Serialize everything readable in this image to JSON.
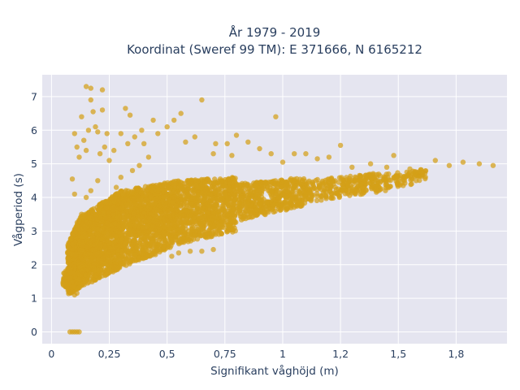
{
  "chart_data": {
    "type": "scatter",
    "title_lines": [
      "År 1979 - 2019",
      "Koordinat (Sweref 99 TM): E 371666, N 6165212"
    ],
    "xlabel": "Signifikant våghöjd (m)",
    "ylabel": "Vågperiod (s)",
    "xlim": [
      -0.04,
      1.97
    ],
    "ylim": [
      -0.35,
      7.65
    ],
    "x_ticks": [
      0,
      0.25,
      0.5,
      0.75,
      1,
      1.25,
      1.5,
      1.75
    ],
    "x_tick_labels": [
      "0",
      "0,25",
      "0,5",
      "0,75",
      "1",
      "1,2",
      "1,5",
      "1,8"
    ],
    "y_ticks": [
      0,
      1,
      2,
      3,
      4,
      5,
      6,
      7
    ],
    "y_tick_labels": [
      "0",
      "1",
      "2",
      "3",
      "4",
      "5",
      "6",
      "7"
    ],
    "marker_color": "#D4A017",
    "background_color": "#E5E5F0",
    "grid": true,
    "series": [
      {
        "points": [
          [
            0.08,
            0.0
          ],
          [
            0.09,
            0.0
          ],
          [
            0.1,
            0.0
          ],
          [
            0.11,
            0.0
          ],
          [
            0.12,
            0.0
          ],
          [
            0.05,
            1.45
          ],
          [
            0.06,
            1.5
          ],
          [
            0.07,
            1.3
          ],
          [
            0.08,
            1.6
          ],
          [
            0.09,
            1.2
          ],
          [
            0.1,
            1.1
          ],
          [
            0.11,
            1.15
          ],
          [
            0.08,
            2.0
          ],
          [
            0.09,
            2.6
          ],
          [
            0.1,
            3.0
          ],
          [
            0.12,
            3.3
          ],
          [
            0.13,
            3.5
          ],
          [
            0.1,
            4.1
          ],
          [
            0.09,
            4.55
          ],
          [
            0.1,
            5.9
          ],
          [
            0.11,
            5.5
          ],
          [
            0.12,
            5.2
          ],
          [
            0.14,
            5.7
          ],
          [
            0.15,
            5.4
          ],
          [
            0.13,
            6.4
          ],
          [
            0.16,
            6.0
          ],
          [
            0.19,
            6.1
          ],
          [
            0.17,
            6.9
          ],
          [
            0.18,
            6.55
          ],
          [
            0.2,
            5.95
          ],
          [
            0.22,
            6.6
          ],
          [
            0.21,
            5.3
          ],
          [
            0.23,
            5.5
          ],
          [
            0.25,
            5.1
          ],
          [
            0.24,
            5.9
          ],
          [
            0.27,
            5.4
          ],
          [
            0.3,
            5.9
          ],
          [
            0.33,
            5.6
          ],
          [
            0.36,
            5.8
          ],
          [
            0.32,
            6.65
          ],
          [
            0.34,
            6.45
          ],
          [
            0.39,
            6.0
          ],
          [
            0.4,
            5.6
          ],
          [
            0.38,
            4.95
          ],
          [
            0.42,
            5.2
          ],
          [
            0.44,
            6.3
          ],
          [
            0.46,
            5.9
          ],
          [
            0.5,
            6.1
          ],
          [
            0.53,
            6.3
          ],
          [
            0.56,
            6.5
          ],
          [
            0.58,
            5.65
          ],
          [
            0.62,
            5.8
          ],
          [
            0.65,
            6.9
          ],
          [
            0.7,
            5.3
          ],
          [
            0.71,
            5.6
          ],
          [
            0.76,
            5.6
          ],
          [
            0.78,
            5.25
          ],
          [
            0.8,
            5.85
          ],
          [
            0.85,
            5.65
          ],
          [
            0.9,
            5.45
          ],
          [
            0.95,
            5.3
          ],
          [
            0.97,
            6.4
          ],
          [
            1.0,
            5.05
          ],
          [
            1.05,
            5.3
          ],
          [
            1.1,
            5.3
          ],
          [
            1.15,
            5.15
          ],
          [
            1.2,
            5.2
          ],
          [
            1.25,
            5.55
          ],
          [
            1.3,
            4.9
          ],
          [
            1.38,
            5.0
          ],
          [
            1.45,
            4.9
          ],
          [
            1.48,
            5.25
          ],
          [
            1.55,
            4.85
          ],
          [
            1.6,
            4.75
          ],
          [
            1.66,
            5.1
          ],
          [
            1.72,
            4.95
          ],
          [
            1.78,
            5.05
          ],
          [
            1.85,
            5.0
          ],
          [
            1.91,
            4.95
          ],
          [
            0.15,
            7.3
          ],
          [
            0.17,
            7.25
          ],
          [
            0.22,
            7.2
          ],
          [
            0.45,
            2.3
          ],
          [
            0.52,
            2.25
          ],
          [
            0.55,
            2.35
          ],
          [
            0.6,
            2.4
          ],
          [
            0.65,
            2.4
          ],
          [
            0.7,
            2.45
          ],
          [
            0.35,
            4.8
          ],
          [
            0.3,
            4.6
          ],
          [
            0.28,
            4.3
          ],
          [
            0.2,
            4.5
          ],
          [
            0.17,
            4.2
          ],
          [
            0.15,
            4.0
          ]
        ]
      }
    ],
    "density_bands": [
      {
        "x_from": 0.07,
        "x_to": 0.12,
        "y_lo_from": 1.1,
        "y_lo_to": 1.3,
        "y_hi_from": 2.6,
        "y_hi_to": 3.4,
        "count": 500
      },
      {
        "x_from": 0.12,
        "x_to": 0.3,
        "y_lo_from": 1.3,
        "y_lo_to": 1.9,
        "y_hi_from": 3.4,
        "y_hi_to": 4.2,
        "count": 1300
      },
      {
        "x_from": 0.3,
        "x_to": 0.55,
        "y_lo_from": 1.9,
        "y_lo_to": 2.6,
        "y_hi_from": 4.2,
        "y_hi_to": 4.5,
        "count": 1200
      },
      {
        "x_from": 0.55,
        "x_to": 0.8,
        "y_lo_from": 2.6,
        "y_lo_to": 3.0,
        "y_hi_from": 4.5,
        "y_hi_to": 4.6,
        "count": 800
      },
      {
        "x_from": 0.8,
        "x_to": 1.1,
        "y_lo_from": 3.3,
        "y_lo_to": 3.75,
        "y_hi_from": 4.4,
        "y_hi_to": 4.6,
        "count": 500
      },
      {
        "x_from": 1.1,
        "x_to": 1.45,
        "y_lo_from": 3.85,
        "y_lo_to": 4.2,
        "y_hi_from": 4.5,
        "y_hi_to": 4.75,
        "count": 280
      },
      {
        "x_from": 1.45,
        "x_to": 1.62,
        "y_lo_from": 4.25,
        "y_lo_to": 4.45,
        "y_hi_from": 4.7,
        "y_hi_to": 4.85,
        "count": 80
      },
      {
        "x_from": 0.05,
        "x_to": 0.1,
        "y_lo_from": 1.3,
        "y_lo_to": 1.3,
        "y_hi_from": 1.75,
        "y_hi_to": 2.1,
        "count": 120
      }
    ]
  }
}
